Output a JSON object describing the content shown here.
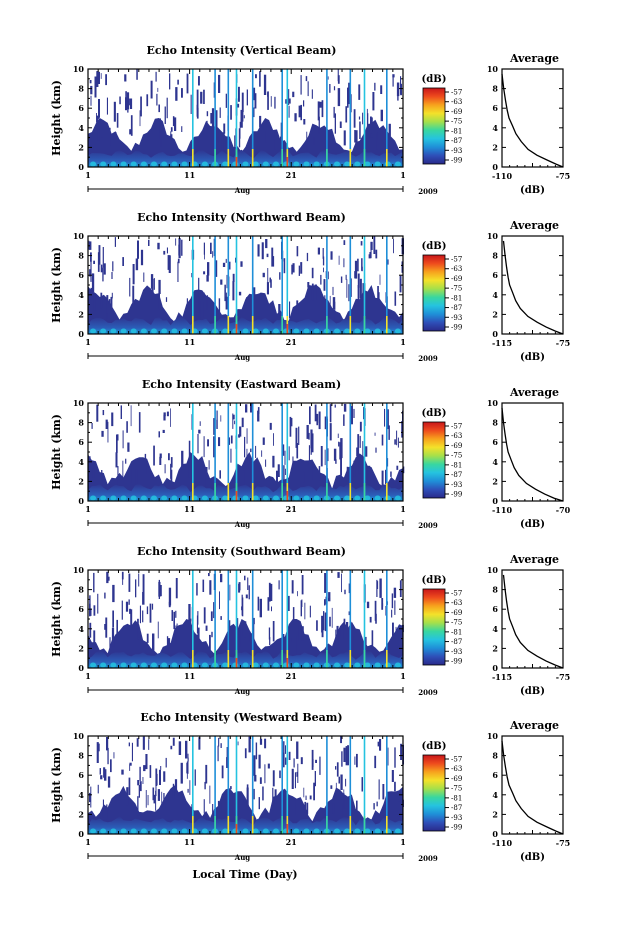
{
  "chart_data": [
    {
      "type": "heatmap",
      "title": "Echo Intensity (Vertical Beam)",
      "ylabel": "Height (km)",
      "ylim": [
        0,
        10
      ],
      "yticks": [
        0,
        2,
        4,
        6,
        8,
        10
      ],
      "xticks": [
        "1",
        "11",
        "21",
        "1"
      ],
      "xlabel_month": "Aug",
      "year": "2009",
      "colorbar": {
        "label": "(dB)",
        "ticks": [
          "-57",
          "-63",
          "-69",
          "-75",
          "-81",
          "-87",
          "-93",
          "-99"
        ]
      },
      "average": {
        "title": "Average",
        "xlabel": "(dB)",
        "xticks": [
          "-110",
          "-75"
        ],
        "xlim": [
          -110,
          -75
        ],
        "ylim": [
          0,
          10
        ],
        "yticks": [
          0,
          2,
          4,
          6,
          8,
          10
        ],
        "profile_x": [
          -75,
          -79,
          -84,
          -90,
          -95,
          -99,
          -102,
          -104,
          -106,
          -107,
          -108,
          -109,
          -110
        ],
        "profile_h": [
          0,
          0.3,
          0.7,
          1.2,
          1.8,
          2.6,
          3.4,
          4.2,
          5.0,
          5.8,
          6.8,
          8.0,
          9.5
        ]
      }
    },
    {
      "type": "heatmap",
      "title": "Echo Intensity (Northward Beam)",
      "ylabel": "Height (km)",
      "ylim": [
        0,
        10
      ],
      "yticks": [
        0,
        2,
        4,
        6,
        8,
        10
      ],
      "xticks": [
        "1",
        "11",
        "21",
        "1"
      ],
      "xlabel_month": "Aug",
      "year": "2009",
      "colorbar": {
        "label": "(dB)",
        "ticks": [
          "-57",
          "-63",
          "-69",
          "-75",
          "-81",
          "-87",
          "-93",
          "-99"
        ]
      },
      "average": {
        "title": "Average",
        "xlabel": "(dB)",
        "xticks": [
          "-115",
          "-75"
        ],
        "xlim": [
          -115,
          -75
        ],
        "ylim": [
          0,
          10
        ],
        "yticks": [
          0,
          2,
          4,
          6,
          8,
          10
        ],
        "profile_x": [
          -75,
          -80,
          -86,
          -92,
          -98,
          -103,
          -106,
          -108,
          -110,
          -111,
          -112,
          -113,
          -114
        ],
        "profile_h": [
          0,
          0.3,
          0.7,
          1.2,
          1.8,
          2.6,
          3.4,
          4.2,
          5.0,
          5.8,
          6.8,
          8.0,
          9.5
        ]
      }
    },
    {
      "type": "heatmap",
      "title": "Echo Intensity (Eastward Beam)",
      "ylabel": "Height (km)",
      "ylim": [
        0,
        10
      ],
      "yticks": [
        0,
        2,
        4,
        6,
        8,
        10
      ],
      "xticks": [
        "1",
        "11",
        "21",
        "1"
      ],
      "xlabel_month": "Aug",
      "year": "2009",
      "colorbar": {
        "label": "(dB)",
        "ticks": [
          "-57",
          "-63",
          "-69",
          "-75",
          "-81",
          "-87",
          "-93",
          "-99"
        ]
      },
      "average": {
        "title": "Average",
        "xlabel": "(dB)",
        "xticks": [
          "-110",
          "-70"
        ],
        "xlim": [
          -110,
          -70
        ],
        "ylim": [
          0,
          10
        ],
        "yticks": [
          0,
          2,
          4,
          6,
          8,
          10
        ],
        "profile_x": [
          -70,
          -76,
          -82,
          -88,
          -94,
          -99,
          -102,
          -104,
          -106,
          -107,
          -108,
          -109,
          -110
        ],
        "profile_h": [
          0,
          0.3,
          0.7,
          1.2,
          1.8,
          2.6,
          3.4,
          4.2,
          5.0,
          5.8,
          6.8,
          8.0,
          9.5
        ]
      }
    },
    {
      "type": "heatmap",
      "title": "Echo Intensity (Southward Beam)",
      "ylabel": "Height (km)",
      "ylim": [
        0,
        10
      ],
      "yticks": [
        0,
        2,
        4,
        6,
        8,
        10
      ],
      "xticks": [
        "1",
        "11",
        "21",
        "1"
      ],
      "xlabel_month": "Aug",
      "year": "2009",
      "colorbar": {
        "label": "(dB)",
        "ticks": [
          "-57",
          "-63",
          "-69",
          "-75",
          "-81",
          "-87",
          "-93",
          "-99"
        ]
      },
      "average": {
        "title": "Average",
        "xlabel": "(dB)",
        "xticks": [
          "-115",
          "-75"
        ],
        "xlim": [
          -115,
          -75
        ],
        "ylim": [
          0,
          10
        ],
        "yticks": [
          0,
          2,
          4,
          6,
          8,
          10
        ],
        "profile_x": [
          -75,
          -80,
          -86,
          -92,
          -98,
          -103,
          -106,
          -108,
          -110,
          -111,
          -112,
          -113,
          -114
        ],
        "profile_h": [
          0,
          0.3,
          0.7,
          1.2,
          1.8,
          2.6,
          3.4,
          4.2,
          5.0,
          5.8,
          6.8,
          8.0,
          9.5
        ]
      }
    },
    {
      "type": "heatmap",
      "title": "Echo Intensity (Westward Beam)",
      "ylabel": "Height (km)",
      "ylim": [
        0,
        10
      ],
      "yticks": [
        0,
        2,
        4,
        6,
        8,
        10
      ],
      "xticks": [
        "1",
        "11",
        "21",
        "1"
      ],
      "xlabel_month": "Aug",
      "year": "2009",
      "colorbar": {
        "label": "(dB)",
        "ticks": [
          "-57",
          "-63",
          "-69",
          "-75",
          "-81",
          "-87",
          "-93",
          "-99"
        ]
      },
      "average": {
        "title": "Average",
        "xlabel": "(dB)",
        "xticks": [
          "-110",
          "-75"
        ],
        "xlim": [
          -110,
          -75
        ],
        "ylim": [
          0,
          10
        ],
        "yticks": [
          0,
          2,
          4,
          6,
          8,
          10
        ],
        "profile_x": [
          -75,
          -79,
          -84,
          -90,
          -95,
          -99,
          -102,
          -104,
          -106,
          -107,
          -108,
          -109,
          -110
        ],
        "profile_h": [
          0,
          0.3,
          0.7,
          1.2,
          1.8,
          2.6,
          3.4,
          4.2,
          5.0,
          5.8,
          6.8,
          8.0,
          9.5
        ]
      }
    }
  ],
  "footer": {
    "xlabel": "Local Time (Day)"
  },
  "colors": {
    "low": "#2b2b8f",
    "mid": "#1fb4e0",
    "high": "#e8361c"
  }
}
